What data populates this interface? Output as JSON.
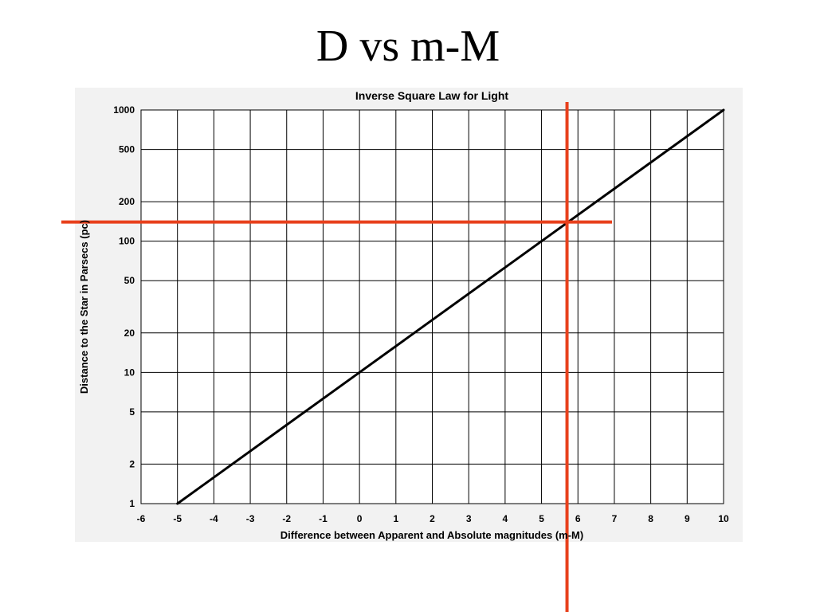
{
  "slide": {
    "title": "D vs m-M"
  },
  "chart_data": {
    "type": "line",
    "title": "Inverse Square Law for Light",
    "xlabel": "Difference between Apparent and Absolute magnitudes (m-M)",
    "ylabel": "Distance to the Star in Parsecs (pc)",
    "xlim": [
      -6,
      10
    ],
    "ylim": [
      1,
      1000
    ],
    "yscale": "log",
    "grid": true,
    "xticks": [
      -6,
      -5,
      -4,
      -3,
      -2,
      -1,
      0,
      1,
      2,
      3,
      4,
      5,
      6,
      7,
      8,
      9,
      10
    ],
    "yticks": [
      1,
      2,
      5,
      10,
      20,
      50,
      100,
      200,
      500,
      1000
    ],
    "series": [
      {
        "x": [
          -5,
          0,
          5,
          10
        ],
        "y": [
          1,
          10,
          100,
          1000
        ]
      }
    ],
    "annotations": {
      "horizontal_line_y": 140,
      "vertical_line_x": 5.7,
      "color": "#e8401c"
    },
    "colors": {
      "line": "#000000",
      "grid": "#000000",
      "plot_background": "#ffffff",
      "chart_background": "#f2f2f2"
    }
  }
}
